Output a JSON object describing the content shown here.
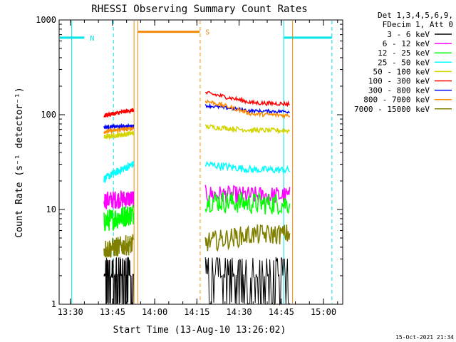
{
  "chart_data": {
    "type": "line",
    "title": "RHESSI Observing Summary Count Rates",
    "xlabel": "Start Time (13-Aug-10 13:26:02)",
    "ylabel": "Count Rate (s⁻¹ detector⁻¹)",
    "y_scale": "log",
    "ylim": [
      1,
      1000
    ],
    "xlim_minutes": [
      13.45,
      15.13
    ],
    "x_ticks": [
      "13:30",
      "13:45",
      "14:00",
      "14:15",
      "14:30",
      "14:45",
      "15:00"
    ],
    "y_ticks": [
      "1",
      "10",
      "100",
      "1000"
    ],
    "legend_header": [
      "Det 1,3,4,5,6,9,",
      "FDecim 1, Att 0"
    ],
    "legend_position": "right",
    "timestamp": "15-Oct-2021 21:34",
    "flags": [
      {
        "label": "N",
        "color": "#00e5e5",
        "intervals": [
          [
            "13:26:02",
            "13:35"
          ],
          [
            "14:46",
            "15:03"
          ]
        ],
        "level": 650
      },
      {
        "label": "S",
        "color": "#f58a0a",
        "intervals": [
          [
            "13:54",
            "14:16"
          ]
        ],
        "level": 750
      }
    ],
    "markers": [
      {
        "time": "13:30:30",
        "color": "#00e5e5",
        "style": "solid"
      },
      {
        "time": "13:45:20",
        "color": "#00e5e5",
        "style": "dashed"
      },
      {
        "time": "13:52:40",
        "color": "#f58a0a",
        "style": "solid"
      },
      {
        "time": "13:54:00",
        "color": "#f58a0a",
        "style": "solid"
      },
      {
        "time": "14:16:10",
        "color": "#f58a0a",
        "style": "dashed"
      },
      {
        "time": "14:45:50",
        "color": "#00e5e5",
        "style": "solid"
      },
      {
        "time": "14:49:00",
        "color": "#f58a0a",
        "style": "solid"
      },
      {
        "time": "15:03:00",
        "color": "#00e5e5",
        "style": "dashed"
      }
    ],
    "intervals": [
      [
        "13:42",
        "13:52:30"
      ],
      [
        "14:18",
        "14:48"
      ]
    ],
    "series": [
      {
        "name": "3 - 6 keV",
        "color": "#000000",
        "values": [
          1.8,
          1.8,
          2.2,
          2.2
        ]
      },
      {
        "name": "6 - 12 keV",
        "color": "#ff00ff",
        "values": [
          12.5,
          13.0,
          14.5,
          14.0
        ]
      },
      {
        "name": "12 - 25 keV",
        "color": "#00ff00",
        "values": [
          7.5,
          9.0,
          12.5,
          11.5
        ]
      },
      {
        "name": "25 - 50 keV",
        "color": "#00ffff",
        "values": [
          21,
          30,
          30,
          26
        ]
      },
      {
        "name": "50 - 100 keV",
        "color": "#d4d400",
        "values": [
          58,
          64,
          75,
          68
        ]
      },
      {
        "name": "100 - 300 keV",
        "color": "#ff0000",
        "values": [
          98,
          112,
          170,
          130
        ]
      },
      {
        "name": "300 - 800 keV",
        "color": "#0000ff",
        "values": [
          74,
          76,
          125,
          108
        ]
      },
      {
        "name": "800 - 7000 keV",
        "color": "#ff8c00",
        "values": [
          66,
          72,
          140,
          98
        ]
      },
      {
        "name": "7000 - 15000 keV",
        "color": "#808000",
        "values": [
          3.8,
          4.3,
          4.5,
          5.5
        ]
      }
    ]
  }
}
